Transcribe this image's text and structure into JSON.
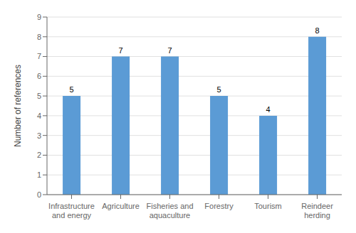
{
  "chart_data": {
    "type": "bar",
    "categories": [
      "Infrastructure\nand energy",
      "Agriculture",
      "Fisheries and\naquaculture",
      "Forestry",
      "Tourism",
      "Reindeer\nherding"
    ],
    "values": [
      5,
      7,
      7,
      5,
      4,
      8
    ],
    "color": "#5b9bd5",
    "ylabel": "Number of references",
    "ylim": [
      0,
      9
    ],
    "yticks": [
      0,
      1,
      2,
      3,
      4,
      5,
      6,
      7,
      8,
      9
    ],
    "grid": true,
    "data_labels": true
  }
}
